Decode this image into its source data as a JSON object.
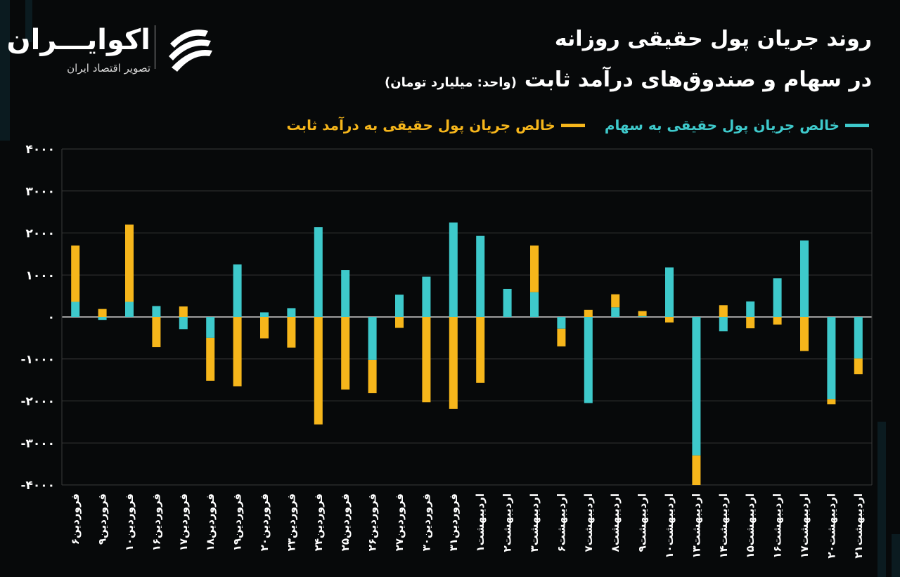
{
  "logo": {
    "name": "اکوایـــران",
    "tagline": "تصویر اقتصاد ایران"
  },
  "header": {
    "title_line1": "روند جریان پول حقیقی روزانه",
    "title_line2": "در سهام و صندوق‌های درآمد ثابت",
    "unit": "(واحد: میلیارد تومان)"
  },
  "colors": {
    "stocks": "#3ec9cb",
    "fixed_income": "#f6b61b",
    "background": "#07090a"
  },
  "legend": {
    "stocks": "خالص جریان پول حقیقی به سهام",
    "fixed_income": "خالص جریان پول حقیقی به درآمد ثابت"
  },
  "chart_data": {
    "type": "bar",
    "stacked": true,
    "ylim": [
      -4000,
      4000
    ],
    "yticks": [
      4000,
      3000,
      2000,
      1000,
      0,
      -1000,
      -2000,
      -3000,
      -4000
    ],
    "ytick_labels": [
      "۴۰۰۰",
      "۳۰۰۰",
      "۲۰۰۰",
      "۱۰۰۰",
      "۰",
      "-۱۰۰۰",
      "-۲۰۰۰",
      "-۳۰۰۰",
      "-۴۰۰۰"
    ],
    "grid": true,
    "legend_position": "top",
    "categories": [
      "فروردین۶",
      "فروردین۹",
      "فروردین۱۰",
      "فروردین۱۶",
      "فروردین۱۷",
      "فروردین۱۸",
      "فروردین۱۹",
      "فروردین۲۰",
      "فروردین۲۳",
      "فروردین۲۴",
      "فروردین۲۵",
      "فروردین۲۶",
      "فروردین۲۷",
      "فروردین۳۰",
      "فروردین۳۱",
      "اردیبهشت۱",
      "اردیبهشت۲",
      "اردیبهشت۳",
      "اردیبهشت۶",
      "اردیبهشت۷",
      "اردیبهشت۸",
      "اردیبهشت۹",
      "اردیبهشت۱۰",
      "اردیبهشت۱۳",
      "اردیبهشت۱۴",
      "اردیبهشت۱۵",
      "اردیبهشت۱۶",
      "اردیبهشت۱۷",
      "اردیبهشت۲۰",
      "اردیبهشت۲۱"
    ],
    "series": [
      {
        "name": "خالص جریان پول حقیقی به سهام",
        "values": [
          360,
          -70,
          360,
          260,
          -290,
          -500,
          1250,
          110,
          210,
          2140,
          1120,
          -1020,
          530,
          960,
          2250,
          1930,
          670,
          590,
          -280,
          -2050,
          230,
          20,
          1180,
          -3300,
          -340,
          370,
          920,
          1820,
          -1960,
          -990
        ]
      },
      {
        "name": "خالص جریان پول حقیقی به درآمد ثابت",
        "values": [
          1340,
          190,
          1840,
          -720,
          250,
          -1020,
          -1650,
          -510,
          -730,
          -2560,
          -1730,
          -790,
          -260,
          -2030,
          -2190,
          -1570,
          0,
          1110,
          -420,
          170,
          310,
          120,
          -130,
          -700,
          280,
          -270,
          -180,
          -810,
          -120,
          -370
        ]
      }
    ]
  }
}
